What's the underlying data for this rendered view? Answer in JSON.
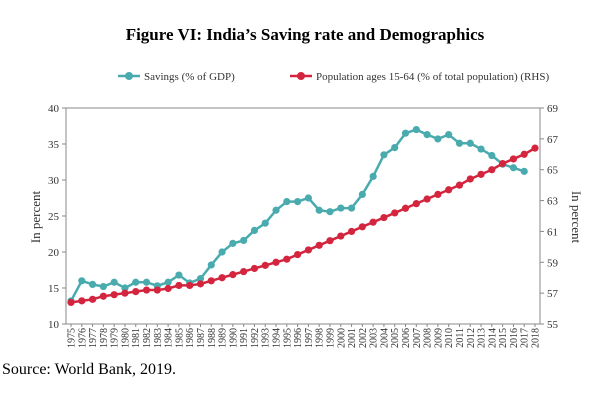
{
  "chart_data": {
    "type": "line",
    "title": "Figure VI: India’s Saving rate and Demographics",
    "ylabel": "In percent",
    "y2label": "In percent",
    "source": "Source: World Bank, 2019.",
    "categories": [
      "1975",
      "1976",
      "1977",
      "1978",
      "1979",
      "1980",
      "1981",
      "1982",
      "1983",
      "1984",
      "1985",
      "1986",
      "1987",
      "1988",
      "1989",
      "1990",
      "1991",
      "1992",
      "1993",
      "1994",
      "1995",
      "1996",
      "1997",
      "1998",
      "1999",
      "2000",
      "2001",
      "2002",
      "2003",
      "2004",
      "2005",
      "2006",
      "2007",
      "2008",
      "2009",
      "2010",
      "2011",
      "2012",
      "2013",
      "2014",
      "2015",
      "2016",
      "2017",
      "2018"
    ],
    "series": [
      {
        "name": "Savings (% of GDP)",
        "color": "#4aabaf",
        "values": [
          13.2,
          16.0,
          15.5,
          15.2,
          15.8,
          15.0,
          15.8,
          15.8,
          15.3,
          15.8,
          16.8,
          15.7,
          16.3,
          18.2,
          20.0,
          21.2,
          21.6,
          23.0,
          24.0,
          25.8,
          27.0,
          27.0,
          27.5,
          25.8,
          25.6,
          26.1,
          26.1,
          28.0,
          30.5,
          33.5,
          34.5,
          36.5,
          37.0,
          36.3,
          35.7,
          36.3,
          35.1,
          35.1,
          34.3,
          33.4,
          32.2,
          31.7,
          31.2,
          null
        ]
      },
      {
        "name": "Population ages 15-64 (% of total population) (RHS)",
        "color": "#d4253f",
        "axis": "y2",
        "values": [
          56.4,
          56.5,
          56.6,
          56.8,
          56.9,
          57.0,
          57.1,
          57.2,
          57.2,
          57.3,
          57.5,
          57.5,
          57.6,
          57.8,
          58.0,
          58.2,
          58.4,
          58.6,
          58.8,
          59.0,
          59.2,
          59.5,
          59.8,
          60.1,
          60.4,
          60.7,
          61.0,
          61.3,
          61.6,
          61.9,
          62.2,
          62.5,
          62.8,
          63.1,
          63.4,
          63.7,
          64.0,
          64.4,
          64.7,
          65.0,
          65.4,
          65.7,
          66.0,
          66.4
        ]
      }
    ],
    "ylim": [
      10,
      40
    ],
    "yticks": [
      10,
      15,
      20,
      25,
      30,
      35,
      40
    ],
    "y2lim": [
      55,
      69
    ],
    "y2ticks": [
      55,
      57,
      59,
      61,
      63,
      65,
      67,
      69
    ],
    "grid": false
  }
}
